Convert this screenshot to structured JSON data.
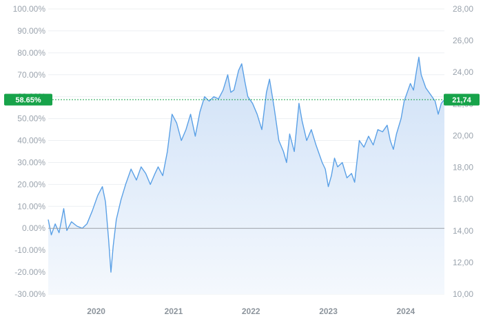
{
  "chart_data": {
    "type": "area",
    "title": "",
    "xlabel": "",
    "ylabel": "",
    "x_ticks": [
      "2020",
      "2021",
      "2022",
      "2023",
      "2024"
    ],
    "xlim": [
      2019.38,
      2024.5
    ],
    "y_left": {
      "ticks": [
        "100.00%",
        "90.00%",
        "80.00%",
        "70.00%",
        "60.00%",
        "50.00%",
        "40.00%",
        "30.00%",
        "20.00%",
        "10.00%",
        "0.00%",
        "-10.00%",
        "-20.00%",
        "-30.00%"
      ],
      "ylim": [
        -30,
        100
      ]
    },
    "y_right": {
      "ticks": [
        "28,00",
        "26,00",
        "24,00",
        "22,00",
        "20,00",
        "18,00",
        "16,00",
        "14,00",
        "12,00",
        "10,00"
      ],
      "ylim": [
        10,
        28
      ]
    },
    "current": {
      "percent_label": "58.65%",
      "percent_value": 58.65,
      "price_label": "21,74",
      "price_value": 21.74
    },
    "series": [
      {
        "values_percent": [
          [
            2019.38,
            4
          ],
          [
            2019.42,
            -3
          ],
          [
            2019.47,
            2
          ],
          [
            2019.52,
            -2
          ],
          [
            2019.58,
            9
          ],
          [
            2019.62,
            -1
          ],
          [
            2019.68,
            3
          ],
          [
            2019.75,
            1
          ],
          [
            2019.82,
            0
          ],
          [
            2019.88,
            2
          ],
          [
            2019.95,
            8
          ],
          [
            2020.02,
            15
          ],
          [
            2020.08,
            19
          ],
          [
            2020.12,
            12
          ],
          [
            2020.16,
            -5
          ],
          [
            2020.19,
            -20
          ],
          [
            2020.22,
            -8
          ],
          [
            2020.26,
            4
          ],
          [
            2020.32,
            13
          ],
          [
            2020.38,
            20
          ],
          [
            2020.45,
            27
          ],
          [
            2020.52,
            22
          ],
          [
            2020.58,
            28
          ],
          [
            2020.64,
            25
          ],
          [
            2020.7,
            20
          ],
          [
            2020.76,
            25
          ],
          [
            2020.8,
            28
          ],
          [
            2020.86,
            24
          ],
          [
            2020.92,
            35
          ],
          [
            2020.98,
            52
          ],
          [
            2021.04,
            48
          ],
          [
            2021.1,
            40
          ],
          [
            2021.16,
            45
          ],
          [
            2021.22,
            52
          ],
          [
            2021.28,
            42
          ],
          [
            2021.34,
            53
          ],
          [
            2021.4,
            60
          ],
          [
            2021.46,
            58
          ],
          [
            2021.52,
            60
          ],
          [
            2021.58,
            59
          ],
          [
            2021.64,
            63
          ],
          [
            2021.7,
            70
          ],
          [
            2021.74,
            62
          ],
          [
            2021.78,
            63
          ],
          [
            2021.84,
            72
          ],
          [
            2021.88,
            75
          ],
          [
            2021.92,
            67
          ],
          [
            2021.96,
            60
          ],
          [
            2022.02,
            57
          ],
          [
            2022.08,
            52
          ],
          [
            2022.14,
            45
          ],
          [
            2022.2,
            62
          ],
          [
            2022.24,
            68
          ],
          [
            2022.3,
            55
          ],
          [
            2022.36,
            40
          ],
          [
            2022.42,
            35
          ],
          [
            2022.46,
            30
          ],
          [
            2022.5,
            43
          ],
          [
            2022.56,
            35
          ],
          [
            2022.62,
            57
          ],
          [
            2022.66,
            49
          ],
          [
            2022.72,
            40
          ],
          [
            2022.78,
            45
          ],
          [
            2022.84,
            38
          ],
          [
            2022.92,
            30
          ],
          [
            2022.96,
            27
          ],
          [
            2023.0,
            19
          ],
          [
            2023.04,
            24
          ],
          [
            2023.08,
            32
          ],
          [
            2023.12,
            28
          ],
          [
            2023.18,
            30
          ],
          [
            2023.24,
            23
          ],
          [
            2023.3,
            25
          ],
          [
            2023.34,
            21
          ],
          [
            2023.4,
            40
          ],
          [
            2023.46,
            37
          ],
          [
            2023.52,
            42
          ],
          [
            2023.58,
            38
          ],
          [
            2023.64,
            45
          ],
          [
            2023.7,
            44
          ],
          [
            2023.76,
            47
          ],
          [
            2023.8,
            40
          ],
          [
            2023.84,
            36
          ],
          [
            2023.88,
            43
          ],
          [
            2023.94,
            50
          ],
          [
            2023.98,
            58
          ],
          [
            2024.02,
            62
          ],
          [
            2024.06,
            66
          ],
          [
            2024.1,
            63
          ],
          [
            2024.14,
            72
          ],
          [
            2024.17,
            78
          ],
          [
            2024.2,
            70
          ],
          [
            2024.26,
            64
          ],
          [
            2024.32,
            61
          ],
          [
            2024.38,
            58
          ],
          [
            2024.42,
            52
          ],
          [
            2024.46,
            57
          ],
          [
            2024.5,
            58.65
          ]
        ]
      }
    ],
    "grid": true,
    "line_color": "#5aa0e6",
    "fill_color_top": "#cfe1f7",
    "fill_color_bottom": "#f4f8fd",
    "badge_color": "#17a34a",
    "zero_line_color": "#9aa0a6"
  }
}
